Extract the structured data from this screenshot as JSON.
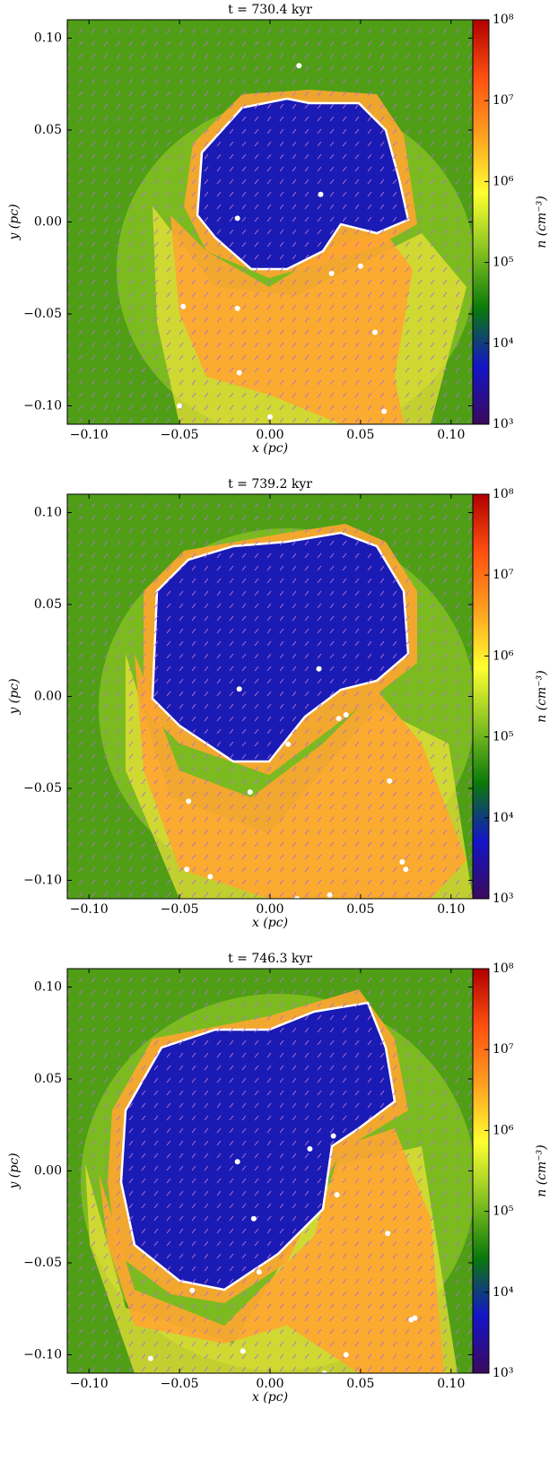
{
  "chart_data": [
    {
      "type": "heatmap",
      "title": "t = 730.4 kyr",
      "xlabel": "x (pc)",
      "ylabel": "y (pc)",
      "xlim": [
        -0.112,
        0.112
      ],
      "ylim": [
        -0.11,
        0.11
      ],
      "xticks": [
        {
          "value": -0.1,
          "label": "−0.10"
        },
        {
          "value": -0.05,
          "label": "−0.05"
        },
        {
          "value": 0,
          "label": "0.00"
        },
        {
          "value": 0.05,
          "label": "0.05"
        },
        {
          "value": 0.1,
          "label": "0.10"
        }
      ],
      "yticks": [
        {
          "value": -0.1,
          "label": "−0.10"
        },
        {
          "value": -0.05,
          "label": "−0.05"
        },
        {
          "value": 0,
          "label": "0.00"
        },
        {
          "value": 0.05,
          "label": "0.05"
        },
        {
          "value": 0.1,
          "label": "0.10"
        }
      ],
      "colorbar": {
        "label": "n (cm⁻³)",
        "log": true,
        "lim": [
          1000,
          100000000
        ],
        "ticks": [
          {
            "value": 1000,
            "label": "10³"
          },
          {
            "value": 10000,
            "label": "10⁴"
          },
          {
            "value": 100000,
            "label": "10⁵"
          },
          {
            "value": 1000000,
            "label": "10⁶"
          },
          {
            "value": 10000000,
            "label": "10⁷"
          },
          {
            "value": 100000000,
            "label": "10⁸"
          }
        ],
        "colors": [
          "#3b0a5c",
          "#1414c8",
          "#0a7a0a",
          "#86c222",
          "#ffff30",
          "#ffa020",
          "#ff5010",
          "#b00000"
        ]
      },
      "sink_color": "#ffffff",
      "sinks": {
        "x": [
          0.016,
          0.028,
          -0.018,
          0.034,
          0.05,
          -0.048,
          -0.018,
          0.058,
          -0.017,
          -0.05,
          0.0,
          0.063
        ],
        "y": [
          0.085,
          0.015,
          0.002,
          -0.028,
          -0.024,
          -0.046,
          -0.047,
          -0.06,
          -0.082,
          -0.1,
          -0.106,
          -0.103
        ]
      }
    },
    {
      "type": "heatmap",
      "title": "t = 739.2 kyr",
      "xlabel": "x (pc)",
      "ylabel": "y (pc)",
      "xlim": [
        -0.112,
        0.112
      ],
      "ylim": [
        -0.11,
        0.11
      ],
      "xticks": [
        {
          "value": -0.1,
          "label": "−0.10"
        },
        {
          "value": -0.05,
          "label": "−0.05"
        },
        {
          "value": 0,
          "label": "0.00"
        },
        {
          "value": 0.05,
          "label": "0.05"
        },
        {
          "value": 0.1,
          "label": "0.10"
        }
      ],
      "yticks": [
        {
          "value": -0.1,
          "label": "−0.10"
        },
        {
          "value": -0.05,
          "label": "−0.05"
        },
        {
          "value": 0,
          "label": "0.00"
        },
        {
          "value": 0.05,
          "label": "0.05"
        },
        {
          "value": 0.1,
          "label": "0.10"
        }
      ],
      "colorbar": {
        "label": "n (cm⁻³)",
        "log": true,
        "lim": [
          1000,
          100000000
        ],
        "ticks": [
          {
            "value": 1000,
            "label": "10³"
          },
          {
            "value": 10000,
            "label": "10⁴"
          },
          {
            "value": 100000,
            "label": "10⁵"
          },
          {
            "value": 1000000,
            "label": "10⁶"
          },
          {
            "value": 10000000,
            "label": "10⁷"
          },
          {
            "value": 100000000,
            "label": "10⁸"
          }
        ],
        "colors": [
          "#3b0a5c",
          "#1414c8",
          "#0a7a0a",
          "#86c222",
          "#ffff30",
          "#ffa020",
          "#ff5010",
          "#b00000"
        ]
      },
      "sink_color": "#ffffff",
      "sinks": {
        "x": [
          0.027,
          -0.017,
          0.038,
          0.042,
          0.01,
          -0.011,
          0.066,
          -0.045,
          -0.046,
          -0.033,
          0.073,
          0.075,
          0.033,
          0.015
        ],
        "y": [
          0.015,
          0.004,
          -0.012,
          -0.01,
          -0.026,
          -0.052,
          -0.046,
          -0.057,
          -0.094,
          -0.098,
          -0.09,
          -0.094,
          -0.108,
          -0.11
        ]
      }
    },
    {
      "type": "heatmap",
      "title": "t = 746.3 kyr",
      "xlabel": "x (pc)",
      "ylabel": "y (pc)",
      "xlim": [
        -0.112,
        0.112
      ],
      "ylim": [
        -0.11,
        0.11
      ],
      "xticks": [
        {
          "value": -0.1,
          "label": "−0.10"
        },
        {
          "value": -0.05,
          "label": "−0.05"
        },
        {
          "value": 0,
          "label": "0.00"
        },
        {
          "value": 0.05,
          "label": "0.05"
        },
        {
          "value": 0.1,
          "label": "0.10"
        }
      ],
      "yticks": [
        {
          "value": -0.1,
          "label": "−0.10"
        },
        {
          "value": -0.05,
          "label": "−0.05"
        },
        {
          "value": 0,
          "label": "0.00"
        },
        {
          "value": 0.05,
          "label": "0.05"
        },
        {
          "value": 0.1,
          "label": "0.10"
        }
      ],
      "colorbar": {
        "label": "n (cm⁻³)",
        "log": true,
        "lim": [
          1000,
          100000000
        ],
        "ticks": [
          {
            "value": 1000,
            "label": "10³"
          },
          {
            "value": 10000,
            "label": "10⁴"
          },
          {
            "value": 100000,
            "label": "10⁵"
          },
          {
            "value": 1000000,
            "label": "10⁶"
          },
          {
            "value": 10000000,
            "label": "10⁷"
          },
          {
            "value": 100000000,
            "label": "10⁸"
          }
        ],
        "colors": [
          "#3b0a5c",
          "#1414c8",
          "#0a7a0a",
          "#86c222",
          "#ffff30",
          "#ffa020",
          "#ff5010",
          "#b00000"
        ]
      },
      "sink_color": "#ffffff",
      "sinks": {
        "x": [
          0.022,
          -0.018,
          0.035,
          -0.009,
          0.037,
          0.065,
          -0.006,
          -0.043,
          0.078,
          0.08,
          -0.015,
          0.042,
          -0.066,
          0.03
        ],
        "y": [
          0.012,
          0.005,
          0.019,
          -0.026,
          -0.013,
          -0.034,
          -0.055,
          -0.065,
          -0.081,
          -0.08,
          -0.098,
          -0.1,
          -0.102,
          -0.11
        ]
      }
    }
  ]
}
